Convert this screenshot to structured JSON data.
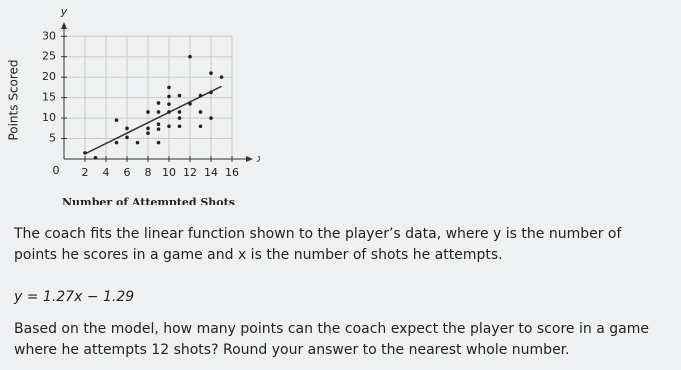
{
  "chart_data": {
    "type": "scatter",
    "x_axis_label": "Number of Attempted Shots",
    "y_axis_label": "Points Scored",
    "x_axis_letter": "x",
    "y_axis_letter": "y",
    "origin_label": "0",
    "x": [
      2,
      3,
      5,
      5,
      6,
      6,
      7,
      8,
      8,
      8,
      9,
      9,
      9,
      9,
      9,
      10,
      10,
      10,
      10,
      10,
      11,
      11,
      11,
      11,
      12,
      12,
      13,
      13,
      13,
      14,
      14,
      14,
      15
    ],
    "values": [
      1.5,
      0.3,
      9.5,
      4,
      7.5,
      5.3,
      4,
      7.5,
      6.3,
      11.5,
      13.7,
      11.5,
      8.5,
      7.3,
      4,
      17.5,
      15.3,
      13.4,
      11.5,
      8,
      15.5,
      11.5,
      10,
      8,
      25,
      13.5,
      15.5,
      11.5,
      8,
      21,
      16.3,
      10,
      20
    ],
    "color": "#222222",
    "fit_line": {
      "slope": 1.27,
      "intercept": -1.29,
      "color": "#333333"
    },
    "xlim": [
      0,
      18
    ],
    "ylim": [
      0,
      33
    ],
    "xticks": [
      2,
      4,
      6,
      8,
      10,
      12,
      14,
      16
    ],
    "yticks": [
      5,
      10,
      15,
      20,
      25,
      30
    ],
    "grid": true
  },
  "question": {
    "intro": "The coach fits the linear function shown to the player’s data, where y is the number of points he scores in a game and x is the number of shots he attempts.",
    "equation": "y = 1.27x − 1.29",
    "prompt": "Based on the model, how many points can the coach expect the player to score in a game where he attempts 12 shots? Round your answer to the nearest whole number."
  }
}
